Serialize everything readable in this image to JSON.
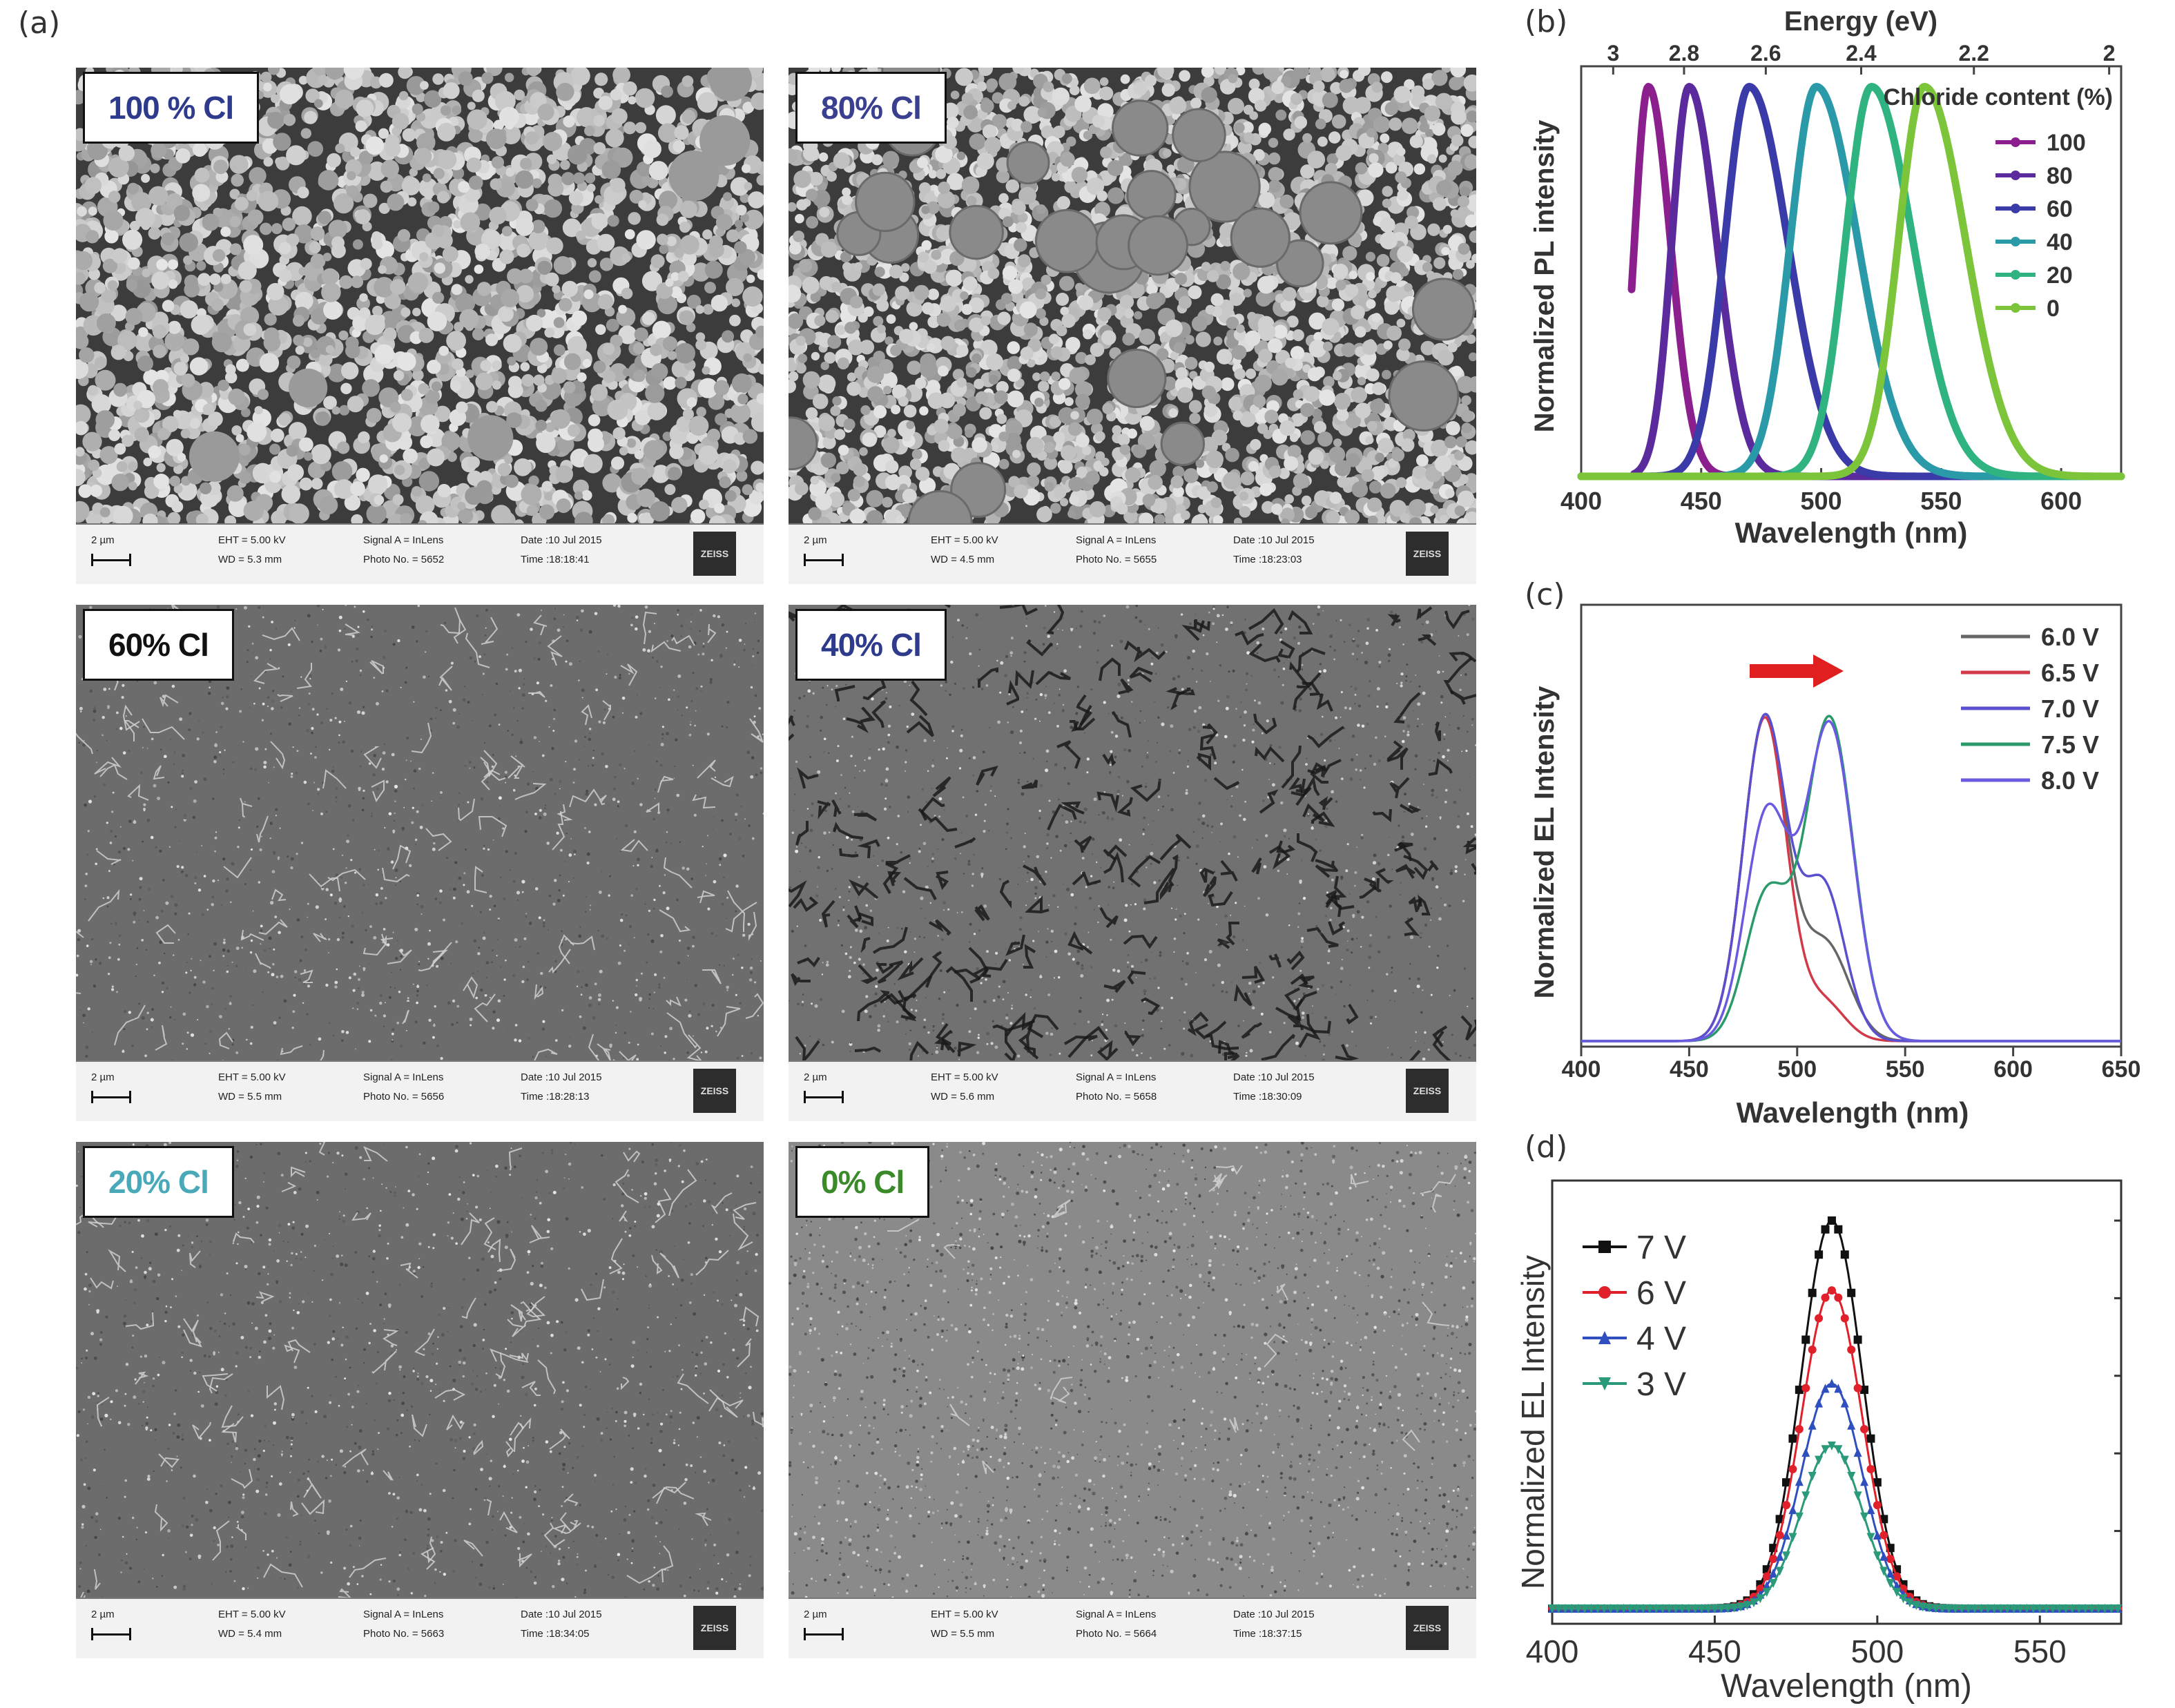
{
  "panels": {
    "a": "(a)",
    "b": "(b)",
    "c": "(c)",
    "d": "(d)"
  },
  "sem_images": [
    {
      "label": "100 % Cl",
      "label_color": "#2e3a8c",
      "eht": "EHT =  5.00 kV",
      "wd": "WD =  5.3 mm",
      "signal": "Signal A = InLens",
      "photo": "Photo No. = 5652",
      "date": "Date :10 Jul 2015",
      "time": "Time :18:18:41",
      "scale": "2 µm",
      "logo": "ZEISS",
      "texture": "grains-large"
    },
    {
      "label": "80% Cl",
      "label_color": "#3a3f8f",
      "eht": "EHT =  5.00 kV",
      "wd": "WD =  4.5 mm",
      "signal": "Signal A = InLens",
      "photo": "Photo No. = 5655",
      "date": "Date :10 Jul 2015",
      "time": "Time :18:23:03",
      "scale": "2 µm",
      "logo": "ZEISS",
      "texture": "grains-mixed"
    },
    {
      "label": "60% Cl",
      "label_color": "#111111",
      "eht": "EHT =  5.00 kV",
      "wd": "WD =  5.5 mm",
      "signal": "Signal A = InLens",
      "photo": "Photo No. = 5656",
      "date": "Date :10 Jul 2015",
      "time": "Time :18:28:13",
      "scale": "2 µm",
      "logo": "ZEISS",
      "texture": "film-smooth"
    },
    {
      "label": "40% Cl",
      "label_color": "#2e3a8c",
      "eht": "EHT =  5.00 kV",
      "wd": "WD =  5.6 mm",
      "signal": "Signal A = InLens",
      "photo": "Photo No. = 5658",
      "date": "Date :10 Jul 2015",
      "time": "Time :18:30:09",
      "scale": "2 µm",
      "logo": "ZEISS",
      "texture": "film-cracked"
    },
    {
      "label": "20% Cl",
      "label_color": "#4aa9b8",
      "eht": "EHT =  5.00 kV",
      "wd": "WD =  5.4 mm",
      "signal": "Signal A = InLens",
      "photo": "Photo No. = 5663",
      "date": "Date :10 Jul 2015",
      "time": "Time :18:34:05",
      "scale": "2 µm",
      "logo": "ZEISS",
      "texture": "film-smooth"
    },
    {
      "label": "0% Cl",
      "label_color": "#3a8a2a",
      "eht": "EHT =  5.00 kV",
      "wd": "WD =  5.5 mm",
      "signal": "Signal A = InLens",
      "photo": "Photo No. = 5664",
      "date": "Date :10 Jul 2015",
      "time": "Time :18:37:15",
      "scale": "2 µm",
      "logo": "ZEISS",
      "texture": "film-fine"
    }
  ],
  "chart_data": [
    {
      "id": "b",
      "type": "line",
      "xlabel": "Wavelength (nm)",
      "ylabel": "Normalized PL intensity",
      "x2label": "Energy (eV)",
      "xlim": [
        400,
        625
      ],
      "xticks": [
        400,
        450,
        500,
        550,
        600
      ],
      "x2ticks": [
        3,
        2.8,
        2.6,
        2.4,
        2.2,
        2
      ],
      "legend_title": "Chloride content (%)",
      "legend_position": "top-right",
      "series": [
        {
          "name": "100",
          "color": "#8b1f8e",
          "peak": 428,
          "fwhm": 16,
          "range": [
            421,
            530
          ]
        },
        {
          "name": "80",
          "color": "#5b2a9c",
          "peak": 445,
          "fwhm": 20,
          "range": [
            422,
            525
          ]
        },
        {
          "name": "60",
          "color": "#3a3aa8",
          "peak": 470,
          "fwhm": 28,
          "range": [
            400,
            565
          ]
        },
        {
          "name": "40",
          "color": "#2b9aa8",
          "peak": 498,
          "fwhm": 30,
          "range": [
            400,
            625
          ]
        },
        {
          "name": "20",
          "color": "#2fb380",
          "peak": 521,
          "fwhm": 30,
          "range": [
            400,
            625
          ]
        },
        {
          "name": "0",
          "color": "#7cc53a",
          "peak": 543,
          "fwhm": 30,
          "range": [
            400,
            625
          ]
        }
      ]
    },
    {
      "id": "c",
      "type": "line",
      "xlabel": "Wavelength (nm)",
      "ylabel": "Normalized EL Intensity",
      "xlim": [
        400,
        650
      ],
      "xticks": [
        400,
        450,
        500,
        550,
        600,
        650
      ],
      "legend_position": "top-right",
      "series": [
        {
          "name": "6.0 V",
          "color": "#666666",
          "peaks": [
            [
              485,
              1.0,
              10
            ],
            [
              513,
              0.3,
              11
            ]
          ]
        },
        {
          "name": "6.5 V",
          "color": "#d23a4a",
          "peaks": [
            [
              485,
              1.0,
              10
            ],
            [
              512,
              0.12,
              10
            ]
          ]
        },
        {
          "name": "7.0 V",
          "color": "#5a4fcf",
          "peaks": [
            [
              485,
              1.0,
              10
            ],
            [
              512,
              0.48,
              10
            ]
          ]
        },
        {
          "name": "7.5 V",
          "color": "#2a9a6a",
          "peaks": [
            [
              486,
              0.45,
              10
            ],
            [
              515,
              1.0,
              11
            ]
          ]
        },
        {
          "name": "8.0 V",
          "color": "#6a5adf",
          "peaks": [
            [
              486,
              0.7,
              10
            ],
            [
              515,
              0.98,
              11
            ]
          ]
        }
      ]
    },
    {
      "id": "d",
      "type": "scatter",
      "xlabel": "Wavelength (nm)",
      "ylabel": "Normalized EL Intensity",
      "xlim": [
        400,
        575
      ],
      "xticks": [
        400,
        450,
        500,
        550
      ],
      "legend_position": "top-left",
      "series": [
        {
          "name": "7 V",
          "color": "#111111",
          "marker": "square",
          "amplitude": 1.0
        },
        {
          "name": "6 V",
          "color": "#e0202a",
          "marker": "circle",
          "amplitude": 0.82
        },
        {
          "name": "4 V",
          "color": "#2f4fbf",
          "marker": "triangle-up",
          "amplitude": 0.58
        },
        {
          "name": "3 V",
          "color": "#2a9a7a",
          "marker": "triangle-down",
          "amplitude": 0.42
        }
      ],
      "peak": 486,
      "fwhm": 22
    }
  ]
}
